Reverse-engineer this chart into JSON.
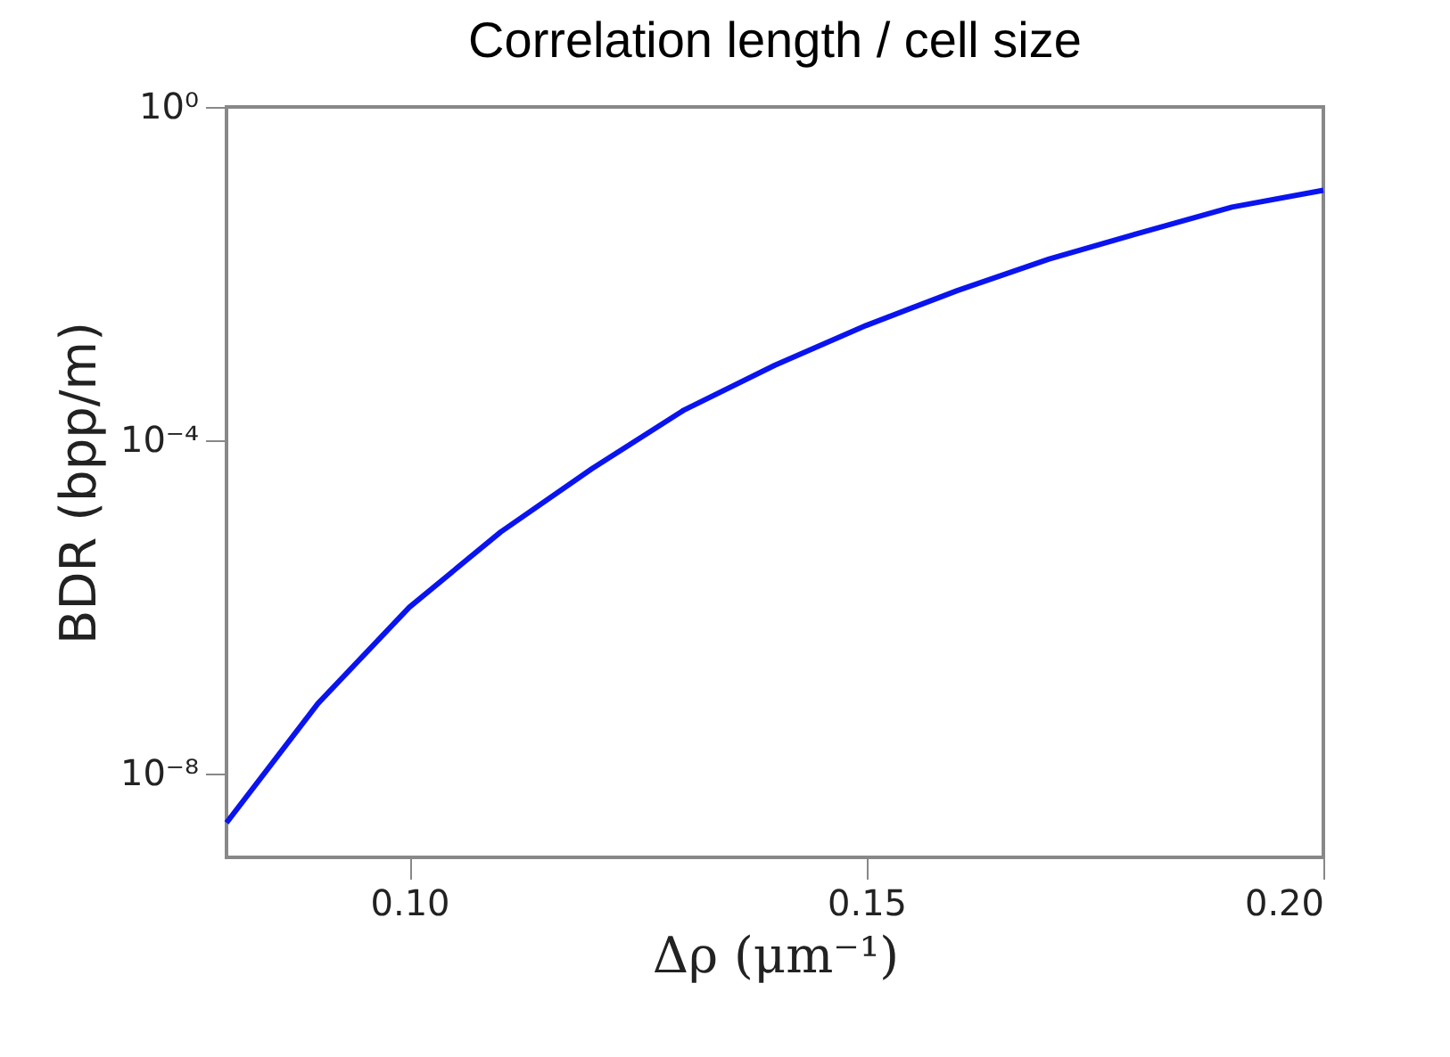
{
  "chart_data": {
    "type": "line",
    "title": "Correlation length / cell size",
    "xlabel": "Δρ (μm⁻¹)",
    "ylabel": "BDR (bpp/m)",
    "x": [
      0.08,
      0.09,
      0.1,
      0.11,
      0.12,
      0.13,
      0.14,
      0.15,
      0.16,
      0.17,
      0.18,
      0.19,
      0.2
    ],
    "series": [
      {
        "color": "#0a14f0",
        "values": [
          2.6e-09,
          7e-08,
          1e-06,
          8e-06,
          4.6e-05,
          0.00023,
          0.0008,
          0.0024,
          0.0063,
          0.015,
          0.031,
          0.063,
          0.1
        ]
      }
    ],
    "xlim": [
      0.08,
      0.2
    ],
    "xticks": [
      {
        "value": 0.1,
        "label": "0.10"
      },
      {
        "value": 0.15,
        "label": "0.15"
      },
      {
        "value": 0.2,
        "label": "0.20"
      }
    ],
    "ylim": [
      1e-09,
      1
    ],
    "yticks": [
      {
        "value": 1,
        "label": "10⁰"
      },
      {
        "value": 0.0001,
        "label": "10⁻⁴"
      },
      {
        "value": 1e-08,
        "label": "10⁻⁸"
      }
    ],
    "log": true,
    "grid": false,
    "marker": "none",
    "line_style": "solid"
  }
}
